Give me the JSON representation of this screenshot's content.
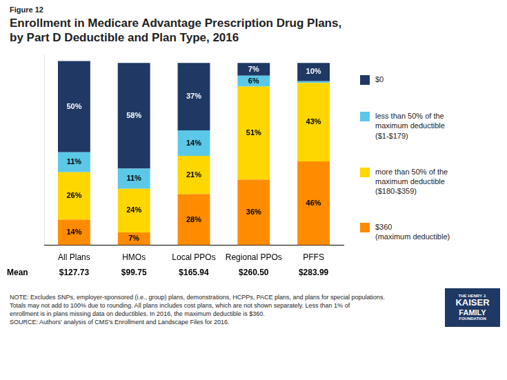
{
  "chart_data": {
    "type": "bar",
    "stacked": true,
    "figure_label": "Figure 12",
    "title": "Enrollment in Medicare Advantage Prescription Drug Plans,\nby Part D Deductible and Plan Type, 2016",
    "categories": [
      "All Plans",
      "HMOs",
      "Local PPOs",
      "Regional PPOs",
      "PFFS"
    ],
    "series": [
      {
        "name": "$360\n(maximum deductible)",
        "color": "#FF8C00",
        "values": [
          14,
          7,
          28,
          36,
          46
        ],
        "value_labels": [
          "14%",
          "7%",
          "28%",
          "36%",
          "46%"
        ]
      },
      {
        "name": "more than 50% of the\nmaximum deductible\n($180-$359)",
        "color": "#FFD700",
        "values": [
          26,
          24,
          21,
          51,
          43
        ],
        "value_labels": [
          "26%",
          "24%",
          "21%",
          "51%",
          "43%"
        ]
      },
      {
        "name": "less than 50% of the\nmaximum deductible\n($1-$179)",
        "color": "#5BC8E8",
        "values": [
          11,
          11,
          14,
          6,
          1
        ],
        "value_labels": [
          "11%",
          "11%",
          "14%",
          "6%",
          null
        ]
      },
      {
        "name": "$0",
        "color": "#1F3864",
        "values": [
          50,
          58,
          37,
          7,
          10
        ],
        "value_labels": [
          "50%",
          "58%",
          "37%",
          "7%",
          "10%"
        ]
      }
    ],
    "data_labels": true,
    "ylim": [
      0,
      105
    ],
    "tick_labels": "x",
    "grid": false,
    "legend": "right",
    "means_label": "Mean",
    "means": [
      "$127.73",
      "$99.75",
      "$165.94",
      "$260.50",
      "$283.99"
    ],
    "annotations": [
      "NOTE:  Excludes SNPs, employer-sponsored (i.e., group) plans, demonstrations, HCPPs, PACE plans, and plans for special populations.",
      "Totals may not add to 100% due to rounding. All plans includes cost plans, which are not shown separately.  Less than 1% of",
      "enrollment is in plans missing data on deductibles.  In 2016, the maximum deductible is $360.",
      "SOURCE:  Authors' analysis of CMS's Enrollment and Landscape Files for 2016."
    ],
    "logo": {
      "lines": [
        "THE HENRY J.",
        "KAISER",
        "FAMILY",
        "FOUNDATION"
      ],
      "color": "#1F3864"
    }
  }
}
